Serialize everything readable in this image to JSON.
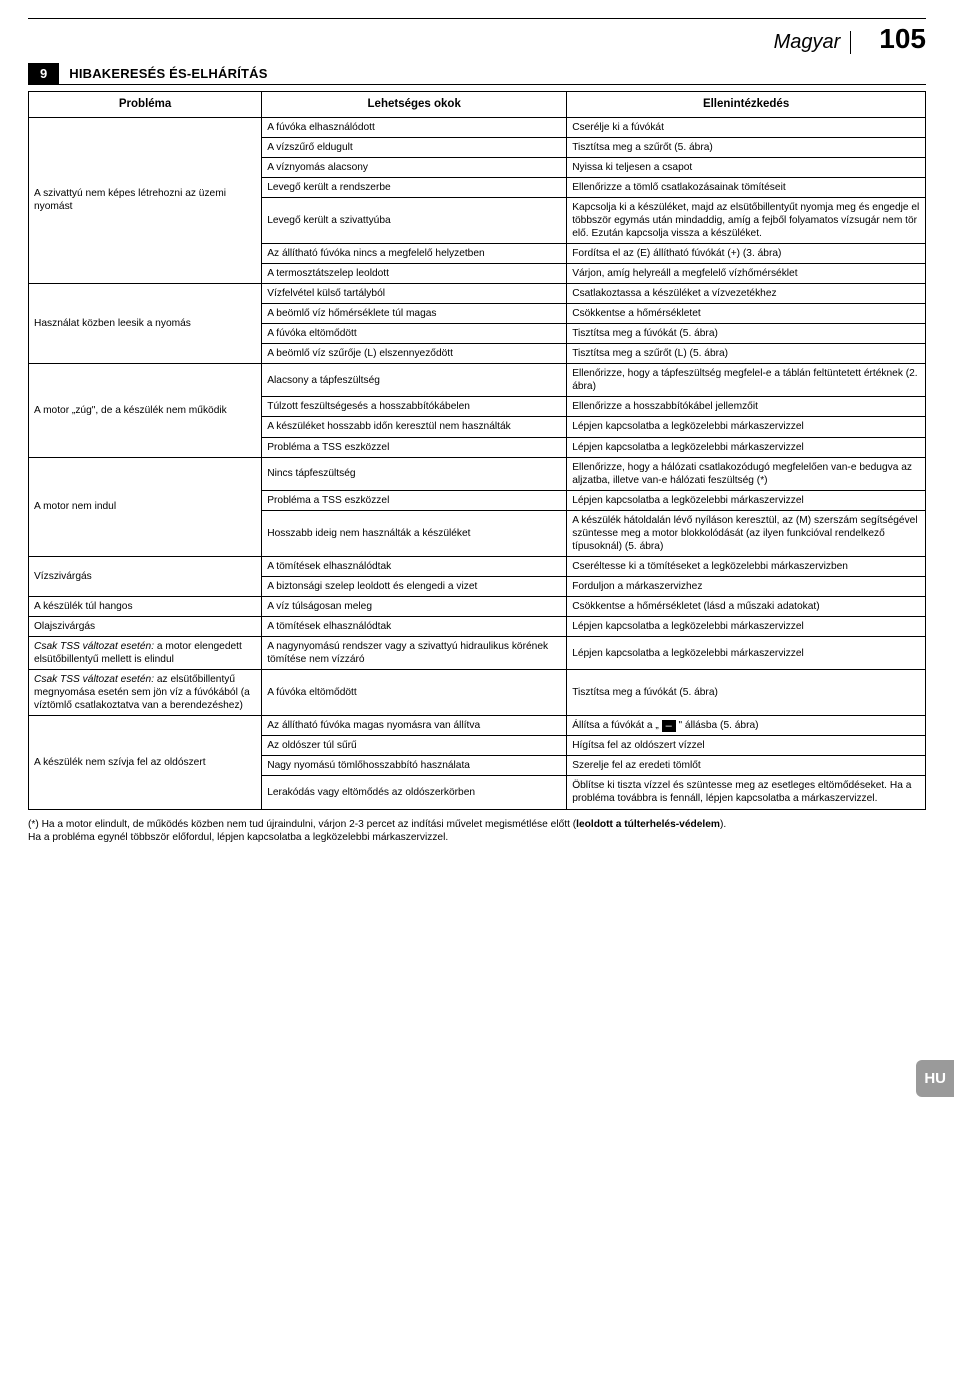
{
  "header": {
    "language": "Magyar",
    "page": "105"
  },
  "section": {
    "number": "9",
    "title": "HIBAKERESÉS ÉS-ELHÁRÍTÁS"
  },
  "table": {
    "headers": [
      "Probléma",
      "Lehetséges okok",
      "Ellenintézkedés"
    ],
    "groups": [
      {
        "problem": "A szivattyú nem képes létrehozni az üzemi nyomást",
        "rows": [
          [
            "A fúvóka elhasználódott",
            "Cserélje ki a fúvókát"
          ],
          [
            "A vízszűrő eldugult",
            "Tisztítsa meg a szűrőt (5. ábra)"
          ],
          [
            "A víznyomás alacsony",
            "Nyissa ki teljesen a csapot"
          ],
          [
            "Levegő került a rendszerbe",
            "Ellenőrizze a tömlő csatlakozásainak tömítéseit"
          ],
          [
            "Levegő került a szivattyúba",
            "Kapcsolja ki a készüléket, majd az elsütőbillentyűt nyomja meg és engedje el többször egymás után mindaddig, amíg a fejből folyamatos vízsugár nem tör elő. Ezután kapcsolja vissza a készüléket."
          ],
          [
            "Az állítható fúvóka nincs a megfelelő helyzetben",
            "Fordítsa el az (E) állítható fúvókát (+) (3. ábra)"
          ],
          [
            "A termosztátszelep leoldott",
            "Várjon, amíg helyreáll a megfelelő vízhőmérséklet"
          ]
        ]
      },
      {
        "problem": "Használat közben leesik a nyomás",
        "rows": [
          [
            "Vízfelvétel külső tartályból",
            "Csatlakoztassa a készüléket a vízvezetékhez"
          ],
          [
            "A beömlő víz hőmérséklete túl magas",
            "Csökkentse a hőmérsékletet"
          ],
          [
            "A fúvóka eltömődött",
            "Tisztítsa meg a fúvókát (5. ábra)"
          ],
          [
            "A beömlő víz szűrője (L) elszennyeződött",
            "Tisztítsa meg a szűrőt (L) (5. ábra)"
          ]
        ]
      },
      {
        "problem": "A motor „zúg\", de a készülék nem működik",
        "rows": [
          [
            "Alacsony a tápfeszültség",
            "Ellenőrizze, hogy a tápfeszültség megfelel-e a táblán feltüntetett értéknek (2. ábra)"
          ],
          [
            "Túlzott feszültségesés a hosszabbítókábelen",
            "Ellenőrizze a hosszabbítókábel jellemzőit"
          ],
          [
            "A készüléket hosszabb időn keresztül nem használták",
            "Lépjen kapcsolatba a legközelebbi márkaszervizzel"
          ],
          [
            "Probléma a TSS eszközzel",
            "Lépjen kapcsolatba a legközelebbi márkaszervizzel"
          ]
        ]
      },
      {
        "problem": "A motor nem indul",
        "rows": [
          [
            "Nincs tápfeszültség",
            "Ellenőrizze, hogy a hálózati csatlakozódugó megfelelően van-e bedugva az aljzatba, illetve van-e hálózati feszültség (*)"
          ],
          [
            "Probléma a TSS eszközzel",
            "Lépjen kapcsolatba a legközelebbi márkaszervizzel"
          ],
          [
            "Hosszabb ideig nem használták a készüléket",
            "A készülék hátoldalán lévő nyíláson keresztül, az (M) szerszám segítségével szüntesse meg a motor blokkolódását (az ilyen funkcióval rendelkező típusoknál) (5. ábra)"
          ]
        ]
      },
      {
        "problem": "Vízszivárgás",
        "rows": [
          [
            "A tömítések elhasználódtak",
            "Cseréltesse ki a tömítéseket a legközelebbi márkaszervizben"
          ],
          [
            "A biztonsági szelep leoldott és elengedi a vizet",
            "Forduljon a márkaszervizhez"
          ]
        ]
      },
      {
        "problem": "A készülék túl hangos",
        "rows": [
          [
            "A víz túlságosan meleg",
            "Csökkentse a hőmérsékletet (lásd a műszaki adatokat)"
          ]
        ]
      },
      {
        "problem": "Olajszivárgás",
        "rows": [
          [
            "A tömítések elhasználódtak",
            "Lépjen kapcsolatba a legközelebbi márkaszervizzel"
          ]
        ]
      },
      {
        "problem_html": "<i>Csak TSS változat esetén:</i> a motor elengedett elsütőbillentyű mellett is elindul",
        "rows": [
          [
            "A nagynyomású rendszer vagy a szivattyú hidraulikus körének tömítése nem vízzáró",
            "Lépjen kapcsolatba a legközelebbi márkaszervizzel"
          ]
        ]
      },
      {
        "problem_html": "<i>Csak TSS változat esetén:</i> az elsütőbillentyű megnyomása esetén sem jön víz a fúvókából (a víztömlő csatlakoztatva van a berendezéshez)",
        "rows": [
          [
            "A fúvóka eltömődött",
            "Tisztítsa meg a fúvókát (5. ábra)"
          ]
        ]
      },
      {
        "problem": "A készülék nem szívja fel az oldószert",
        "rows": [
          [
            "Az állítható fúvóka magas nyomásra van állítva",
            "Állítsa a fúvókát a „ <span class=\"blk\">–</span> \" állásba (5. ábra)"
          ],
          [
            "Az oldószer túl sűrű",
            "Hígítsa fel az oldószert vízzel"
          ],
          [
            "Nagy nyomású tömlőhosszabbító használata",
            "Szerelje fel az eredeti tömlőt"
          ],
          [
            "Lerakódás vagy eltömődés az oldószerkörben",
            "Öblítse ki tiszta vízzel és szüntesse meg az esetleges eltömődéseket. Ha a probléma továbbra is fennáll, lépjen kapcsolatba a márkaszervizzel."
          ]
        ]
      }
    ]
  },
  "footnote": "(*) Ha a motor elindult, de működés közben nem tud újraindulni, várjon 2-3 percet az indítási művelet megismétlése előtt (<b>leoldott a túlterhelés-védelem</b>).<br>Ha a probléma egynél többször előfordul, lépjen kapcsolatba a legközelebbi márkaszervizzel.",
  "side_tab": "HU"
}
